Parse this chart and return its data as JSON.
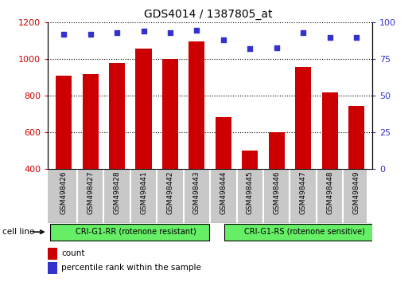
{
  "title": "GDS4014 / 1387805_at",
  "samples": [
    "GSM498426",
    "GSM498427",
    "GSM498428",
    "GSM498441",
    "GSM498442",
    "GSM498443",
    "GSM498444",
    "GSM498445",
    "GSM498446",
    "GSM498447",
    "GSM498448",
    "GSM498449"
  ],
  "counts": [
    912,
    920,
    980,
    1060,
    1000,
    1095,
    685,
    500,
    600,
    960,
    820,
    745
  ],
  "percentile_ranks": [
    92,
    92,
    93,
    94,
    93,
    95,
    88,
    82,
    83,
    93,
    90,
    90
  ],
  "bar_color": "#cc0000",
  "dot_color": "#3333cc",
  "ylim_left": [
    400,
    1200
  ],
  "ylim_right": [
    0,
    100
  ],
  "yticks_left": [
    400,
    600,
    800,
    1000,
    1200
  ],
  "yticks_right": [
    0,
    25,
    50,
    75,
    100
  ],
  "group1_label": "CRI-G1-RR (rotenone resistant)",
  "group2_label": "CRI-G1-RS (rotenone sensitive)",
  "group1_count": 6,
  "group2_count": 6,
  "cell_line_label": "cell line",
  "legend_count_label": "count",
  "legend_pct_label": "percentile rank within the sample",
  "group_color": "#66ee66",
  "tick_area_color": "#c8c8c8",
  "background_color": "#ffffff"
}
